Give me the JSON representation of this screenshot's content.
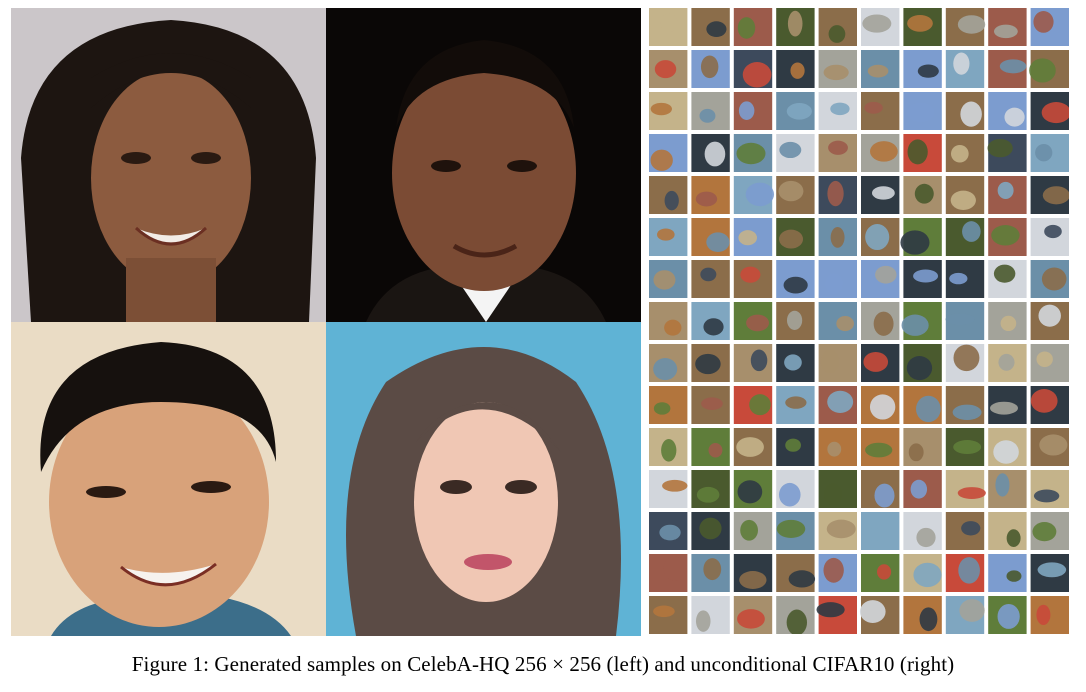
{
  "figure": {
    "caption": "Figure 1: Generated samples on CelebA-HQ 256 × 256 (left) and unconditional CIFAR10 (right)"
  },
  "faces": [
    {
      "name": "face-woman-curly-hair",
      "bg": "#c9c4c7",
      "skin": "#8a5a3e",
      "hair": "#1c1410"
    },
    {
      "name": "face-man-dark-background",
      "bg": "#0b0807",
      "skin": "#7a4a33",
      "hair": "#140d0a"
    },
    {
      "name": "face-man-smiling",
      "bg": "#e9dcc6",
      "skin": "#d9a47c",
      "hair": "#17120f"
    },
    {
      "name": "face-woman-brown-hair",
      "bg": "#5fb1d3",
      "skin": "#efc6b3",
      "hair": "#5a4a44"
    }
  ],
  "cifar": {
    "rows": 15,
    "cols": 10,
    "palette": [
      "#6b8fa8",
      "#8b6d4a",
      "#5f7d3a",
      "#a3a39a",
      "#3d4a5c",
      "#b2753d",
      "#7c9ccf",
      "#c4b38a",
      "#4a5a2e",
      "#9c5b4b",
      "#d2d6dc",
      "#2f3a44",
      "#c84a3a",
      "#7fa6c0",
      "#a78f6c"
    ]
  }
}
